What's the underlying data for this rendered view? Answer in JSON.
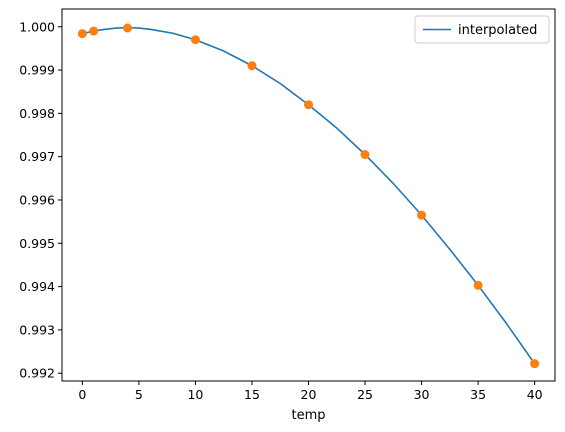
{
  "chart_data": {
    "type": "line",
    "title": "",
    "xlabel": "temp",
    "ylabel": "",
    "xlim": [
      -1.8,
      41.8
    ],
    "ylim": [
      0.99182,
      1.00041
    ],
    "xticks": [
      0,
      5,
      10,
      15,
      20,
      25,
      30,
      35,
      40
    ],
    "xtick_labels": [
      "0",
      "5",
      "10",
      "15",
      "20",
      "25",
      "30",
      "35",
      "40"
    ],
    "yticks": [
      0.992,
      0.993,
      0.994,
      0.995,
      0.996,
      0.997,
      0.998,
      0.999,
      1.0
    ],
    "ytick_labels": [
      "0.992",
      "0.993",
      "0.994",
      "0.995",
      "0.996",
      "0.997",
      "0.998",
      "0.999",
      "1.000"
    ],
    "grid": false,
    "legend_position": "top-right",
    "series": [
      {
        "name": "interpolated",
        "kind": "line",
        "color": "#1f77b4",
        "x": [
          0.0,
          0.5,
          1.0,
          2.0,
          3.0,
          4.0,
          5.0,
          6.0,
          8.0,
          10.0,
          12.5,
          15.0,
          17.5,
          20.0,
          22.5,
          25.0,
          27.5,
          30.0,
          32.5,
          35.0,
          37.5,
          40.0
        ],
        "y": [
          0.99984,
          0.99987,
          0.9999,
          0.99994,
          0.99997,
          0.99998,
          0.99997,
          0.99994,
          0.99985,
          0.9997,
          0.99944,
          0.9991,
          0.99869,
          0.9982,
          0.99766,
          0.99705,
          0.99638,
          0.99565,
          0.99486,
          0.99403,
          0.99315,
          0.99222
        ]
      },
      {
        "kind": "points",
        "color": "#ff7f0e",
        "x": [
          0,
          1,
          4,
          10,
          15,
          20,
          25,
          30,
          35,
          40
        ],
        "y": [
          0.99984,
          0.9999,
          0.99997,
          0.9997,
          0.9991,
          0.9982,
          0.99705,
          0.99565,
          0.99403,
          0.99222
        ]
      }
    ]
  }
}
